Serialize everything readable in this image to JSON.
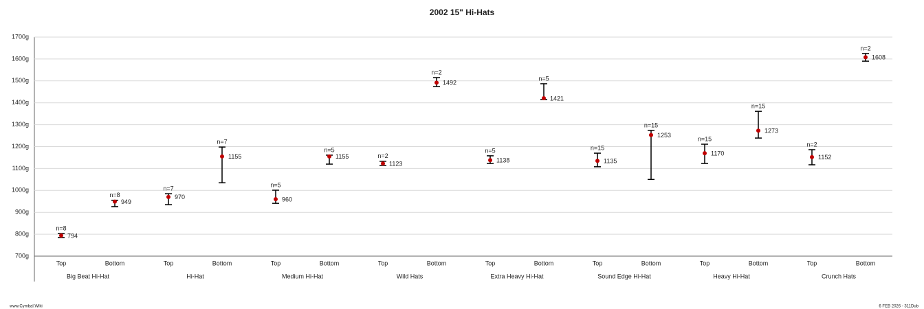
{
  "chart_data": {
    "type": "errorbar",
    "title": "2002 15\" Hi-Hats",
    "categories": [
      "Top",
      "Bottom",
      "Top",
      "Bottom",
      "Top",
      "Bottom",
      "Top",
      "Bottom",
      "Top",
      "Bottom",
      "Top",
      "Bottom",
      "Top",
      "Bottom",
      "Top",
      "Bottom"
    ],
    "groups": [
      "Big Beat Hi-Hat",
      "Hi-Hat",
      "Medium Hi-Hat",
      "Wild Hats",
      "Extra Heavy Hi-Hat",
      "Sound Edge Hi-Hat",
      "Heavy Hi-Hat",
      "Crunch Hats"
    ],
    "values": [
      794,
      949,
      970,
      1155,
      960,
      1155,
      1123,
      1492,
      1138,
      1421,
      1135,
      1253,
      1170,
      1273,
      1152,
      1608
    ],
    "low": [
      785,
      926,
      935,
      1035,
      941,
      1120,
      1114,
      1474,
      1123,
      1415,
      1108,
      1050,
      1123,
      1239,
      1117,
      1590
    ],
    "high": [
      803,
      955,
      985,
      1198,
      1001,
      1161,
      1133,
      1515,
      1158,
      1487,
      1170,
      1274,
      1211,
      1361,
      1186,
      1625
    ],
    "n_labels": [
      "n=8",
      "n=8",
      "n=7",
      "n=7",
      "n=5",
      "n=5",
      "n=2",
      "n=2",
      "n=5",
      "n=5",
      "n=15",
      "n=15",
      "n=15",
      "n=15",
      "n=2",
      "n=2"
    ],
    "color": "#c00000",
    "ylim": [
      700,
      1700
    ],
    "yticks": [
      {
        "value": 700,
        "label": "700g"
      },
      {
        "value": 800,
        "label": "800g"
      },
      {
        "value": 900,
        "label": "900g"
      },
      {
        "value": 1000,
        "label": "1000g"
      },
      {
        "value": 1100,
        "label": "1100g"
      },
      {
        "value": 1200,
        "label": "1200g"
      },
      {
        "value": 1300,
        "label": "1300g"
      },
      {
        "value": 1400,
        "label": "1400g"
      },
      {
        "value": 1500,
        "label": "1500g"
      },
      {
        "value": 1600,
        "label": "1600g"
      },
      {
        "value": 1700,
        "label": "1700g"
      }
    ],
    "grid": true,
    "footer_left": "www.Cymbal.Wiki",
    "footer_right": "6 FEB 2026 - 311Dub"
  }
}
